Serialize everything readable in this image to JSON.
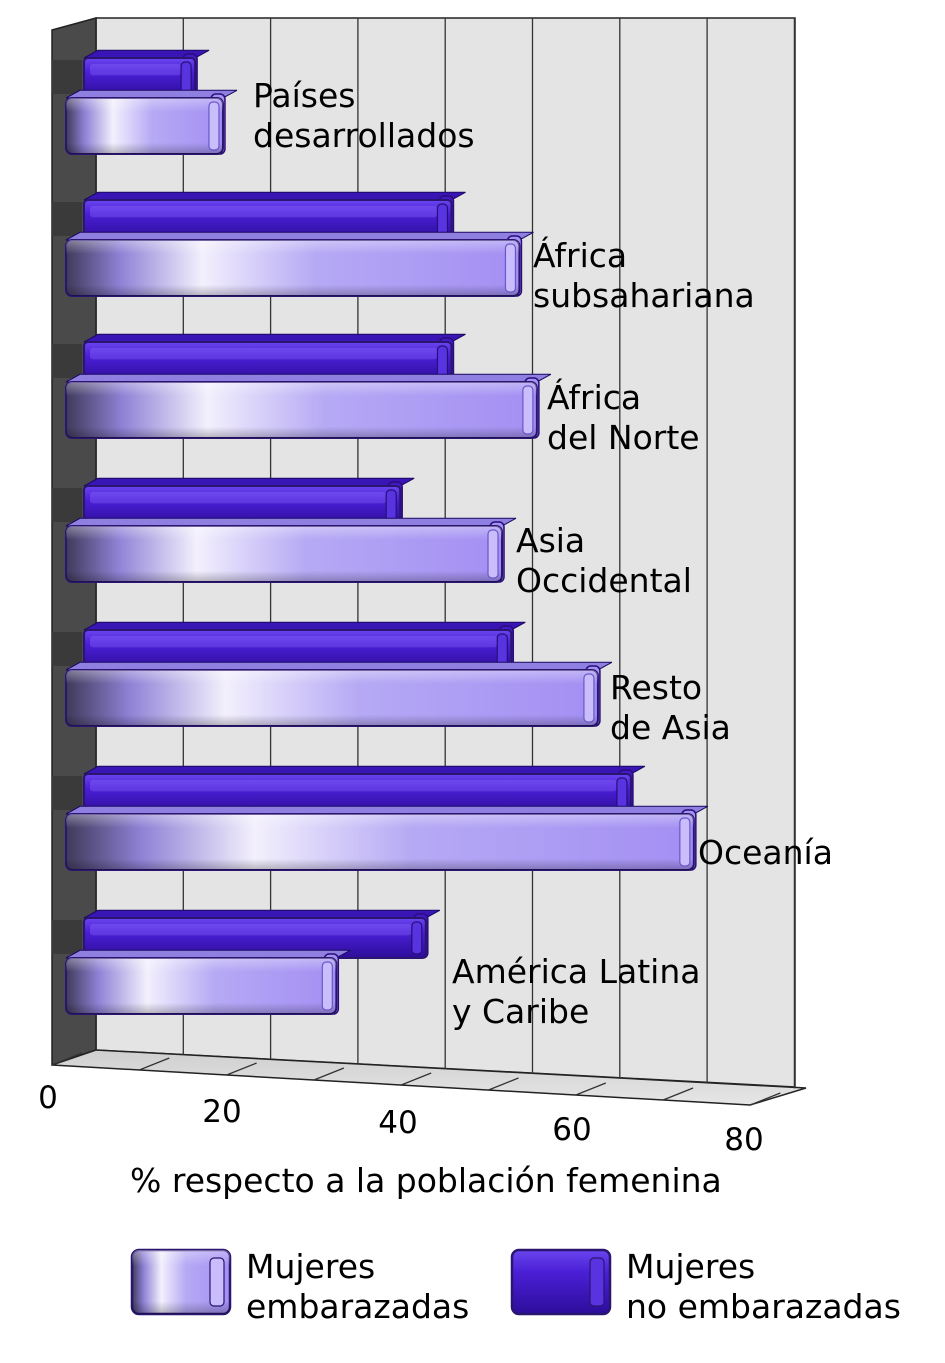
{
  "chart_data": {
    "type": "bar",
    "orientation": "horizontal",
    "three_d": true,
    "categories": [
      [
        "Países",
        "desarrollados"
      ],
      [
        "África",
        "subsahariana"
      ],
      [
        "África",
        "del Norte"
      ],
      [
        "Asia",
        "Occidental"
      ],
      [
        "Resto",
        "de Asia"
      ],
      [
        "Oceanía"
      ],
      [
        "América Latina",
        "y Caribe"
      ]
    ],
    "series": [
      {
        "name": [
          "Mujeres",
          "embarazadas"
        ],
        "color": "#9e8cf2",
        "values": [
          18,
          52,
          54,
          50,
          61,
          72,
          31
        ]
      },
      {
        "name": [
          "Mujeres",
          "no embarazadas"
        ],
        "color": "#4a1fd0",
        "values": [
          13,
          43,
          43,
          37,
          50,
          64,
          40
        ]
      }
    ],
    "xlabel": "% respecto a la población femenina",
    "xticks": [
      "0",
      "20",
      "40",
      "60",
      "80"
    ],
    "xlim": [
      0,
      80
    ],
    "grid": true,
    "legend": "bottom"
  }
}
